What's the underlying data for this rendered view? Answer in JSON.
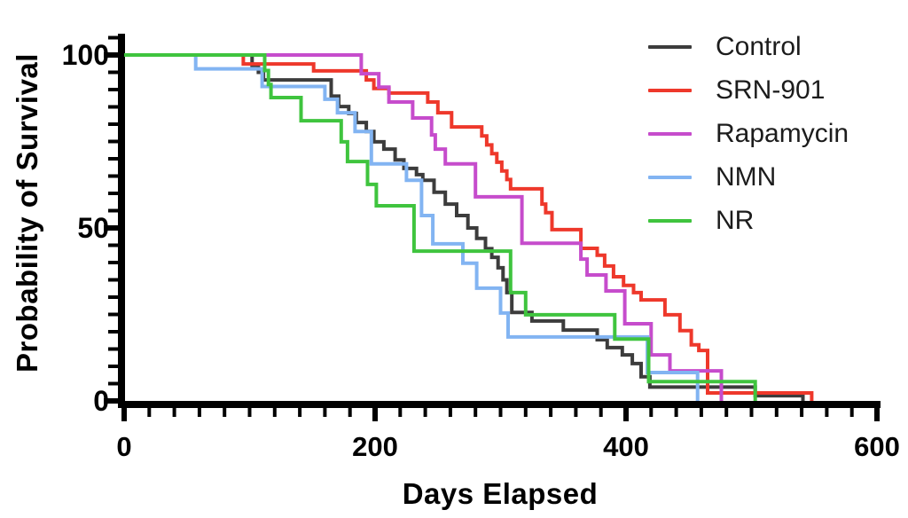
{
  "chart_data": {
    "type": "line",
    "variant": "kaplan-meier-step-survival",
    "title": "",
    "xlabel": "Days Elapsed",
    "ylabel": "Probability of Survival",
    "xlim": [
      0,
      600
    ],
    "ylim": [
      0,
      100
    ],
    "x_major_ticks": [
      0,
      200,
      400,
      600
    ],
    "x_minor_tick_step": 20,
    "y_major_ticks": [
      0,
      50,
      100
    ],
    "y_minor_tick_step": 5,
    "grid": false,
    "legend_position": "top-right",
    "axis_color": "#000000",
    "series": [
      {
        "name": "Control",
        "color": "#3c3c3c",
        "points": [
          [
            0,
            100
          ],
          [
            102,
            97
          ],
          [
            107,
            95
          ],
          [
            111,
            92.8
          ],
          [
            165,
            88.1
          ],
          [
            171,
            85.1
          ],
          [
            179,
            83.1
          ],
          [
            185,
            80.5
          ],
          [
            193,
            77.9
          ],
          [
            199,
            74.9
          ],
          [
            207,
            72.8
          ],
          [
            216,
            69.7
          ],
          [
            223,
            67.2
          ],
          [
            233,
            65.4
          ],
          [
            238,
            63.8
          ],
          [
            247,
            60.3
          ],
          [
            256,
            56.9
          ],
          [
            265,
            53.6
          ],
          [
            274,
            50
          ],
          [
            281,
            47
          ],
          [
            288,
            44
          ],
          [
            293,
            41.5
          ],
          [
            298,
            38.5
          ],
          [
            302,
            35
          ],
          [
            305,
            31.3
          ],
          [
            309,
            25.6
          ],
          [
            325,
            23.1
          ],
          [
            350,
            20.5
          ],
          [
            377,
            17.7
          ],
          [
            385,
            15.4
          ],
          [
            397,
            13.3
          ],
          [
            405,
            10.8
          ],
          [
            412,
            7
          ],
          [
            419,
            4
          ],
          [
            503,
            1.5
          ],
          [
            541,
            0
          ]
        ]
      },
      {
        "name": "SRN-901",
        "color": "#ee382b",
        "points": [
          [
            0,
            100
          ],
          [
            95,
            97.4
          ],
          [
            151,
            95.4
          ],
          [
            193,
            92.8
          ],
          [
            199,
            90.3
          ],
          [
            211,
            89
          ],
          [
            242,
            86.4
          ],
          [
            250,
            83.3
          ],
          [
            261,
            79.2
          ],
          [
            285,
            76.6
          ],
          [
            289,
            74
          ],
          [
            293,
            71.5
          ],
          [
            297,
            69
          ],
          [
            301,
            66.5
          ],
          [
            305,
            64
          ],
          [
            308,
            61.3
          ],
          [
            333,
            56.9
          ],
          [
            336,
            54.4
          ],
          [
            341,
            49.5
          ],
          [
            364,
            44.1
          ],
          [
            377,
            42.1
          ],
          [
            383,
            39
          ],
          [
            390,
            35.9
          ],
          [
            398,
            33.4
          ],
          [
            406,
            31.3
          ],
          [
            412,
            29.2
          ],
          [
            431,
            24.9
          ],
          [
            443,
            20.3
          ],
          [
            452,
            16.2
          ],
          [
            458,
            14.6
          ],
          [
            465,
            2.3
          ],
          [
            548,
            0
          ]
        ]
      },
      {
        "name": "Rapamycin",
        "color": "#c64ccc",
        "points": [
          [
            0,
            100
          ],
          [
            189,
            94.6
          ],
          [
            203,
            90.7
          ],
          [
            211,
            86.4
          ],
          [
            230,
            81.8
          ],
          [
            245,
            76.9
          ],
          [
            248,
            72.8
          ],
          [
            256,
            68.5
          ],
          [
            280,
            59
          ],
          [
            317,
            45.6
          ],
          [
            364,
            41
          ],
          [
            369,
            36.4
          ],
          [
            384,
            31.8
          ],
          [
            399,
            22.3
          ],
          [
            420,
            13.3
          ],
          [
            435,
            8.7
          ],
          [
            476,
            0
          ]
        ]
      },
      {
        "name": "NMN",
        "color": "#82b4f2",
        "points": [
          [
            0,
            100
          ],
          [
            57,
            96
          ],
          [
            110,
            90.9
          ],
          [
            160,
            87.2
          ],
          [
            170,
            83.3
          ],
          [
            184,
            77.9
          ],
          [
            197,
            68.5
          ],
          [
            225,
            63.8
          ],
          [
            237,
            53.6
          ],
          [
            246,
            45.4
          ],
          [
            270,
            39.8
          ],
          [
            281,
            32.6
          ],
          [
            300,
            25.4
          ],
          [
            306,
            18.5
          ],
          [
            417,
            8.2
          ],
          [
            457,
            0
          ]
        ]
      },
      {
        "name": "NR",
        "color": "#3fc43e",
        "points": [
          [
            0,
            100
          ],
          [
            112,
            95.5
          ],
          [
            115,
            91.5
          ],
          [
            117,
            87.7
          ],
          [
            141,
            81
          ],
          [
            173,
            74.9
          ],
          [
            178,
            69.2
          ],
          [
            194,
            62.6
          ],
          [
            201,
            56.4
          ],
          [
            231,
            43.3
          ],
          [
            308,
            31.3
          ],
          [
            320,
            24.9
          ],
          [
            391,
            17.9
          ],
          [
            418,
            5.6
          ],
          [
            503,
            0
          ]
        ]
      }
    ]
  },
  "axes": {
    "y_tick_labels": [
      "100",
      "50",
      "0"
    ],
    "x_tick_labels": [
      "0",
      "200",
      "400",
      "600"
    ]
  }
}
